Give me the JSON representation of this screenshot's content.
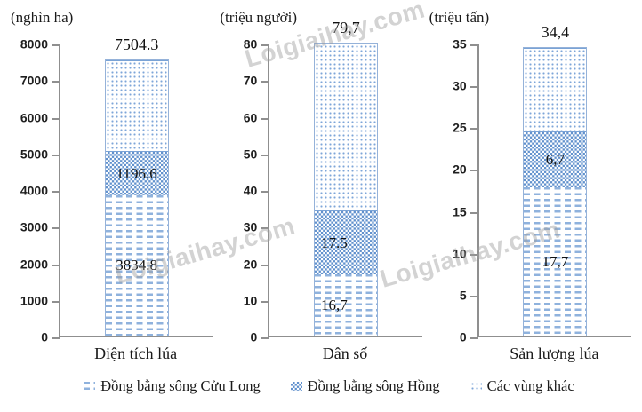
{
  "watermark": {
    "text": "Loigiaihay.com"
  },
  "colors": {
    "bar_border": "#95b2d9",
    "dash_blue": "#8fb2dd",
    "checker_blue": "#6191cd",
    "dot_blue": "#7ea6d8",
    "axis_gray": "#8f8f8f"
  },
  "legend": {
    "items": [
      {
        "id": "cuu-long",
        "pattern": "dash",
        "label": "Đồng bằng sông Cửu Long"
      },
      {
        "id": "hong",
        "pattern": "checker",
        "label": "Đồng bằng sông Hồng"
      },
      {
        "id": "khac",
        "pattern": "dots",
        "label": "Các vùng khác"
      }
    ],
    "position": "bottom"
  },
  "chart_data": [
    {
      "type": "bar",
      "stacked": true,
      "unit": "(nghìn ha)",
      "category": "Diện tích lúa",
      "ylim": [
        0,
        8000
      ],
      "ystep": 1000,
      "grid": false,
      "total": 7504.3,
      "total_label": "7504.3",
      "segments": [
        {
          "series": "Đồng bằng sông Cửu Long",
          "value": 3834.8,
          "label": "3834.8"
        },
        {
          "series": "Đồng bằng sông Hồng",
          "value": 1196.6,
          "label": "1196.6"
        },
        {
          "series": "Các vùng khác",
          "value": 2472.9,
          "label": ""
        }
      ]
    },
    {
      "type": "bar",
      "stacked": true,
      "unit": "(triệu người)",
      "category": "Dân số",
      "ylim": [
        0,
        80
      ],
      "ystep": 10,
      "grid": false,
      "total": 79.7,
      "total_label": "79,7",
      "segments": [
        {
          "series": "Đồng bằng sông Cửu Long",
          "value": 16.7,
          "label": "16,7"
        },
        {
          "series": "Đồng bằng sông Hồng",
          "value": 17.5,
          "label": "17.5"
        },
        {
          "series": "Các vùng khác",
          "value": 45.5,
          "label": ""
        }
      ]
    },
    {
      "type": "bar",
      "stacked": true,
      "unit": "(triệu tấn)",
      "category": "Sản lượng lúa",
      "ylim": [
        0,
        35
      ],
      "ystep": 5,
      "grid": false,
      "total": 34.4,
      "total_label": "34,4",
      "segments": [
        {
          "series": "Đồng bằng sông Cửu Long",
          "value": 17.7,
          "label": "17,7"
        },
        {
          "series": "Đồng bằng sông Hồng",
          "value": 6.7,
          "label": "6,7"
        },
        {
          "series": "Các vùng khác",
          "value": 10.0,
          "label": ""
        }
      ]
    }
  ]
}
